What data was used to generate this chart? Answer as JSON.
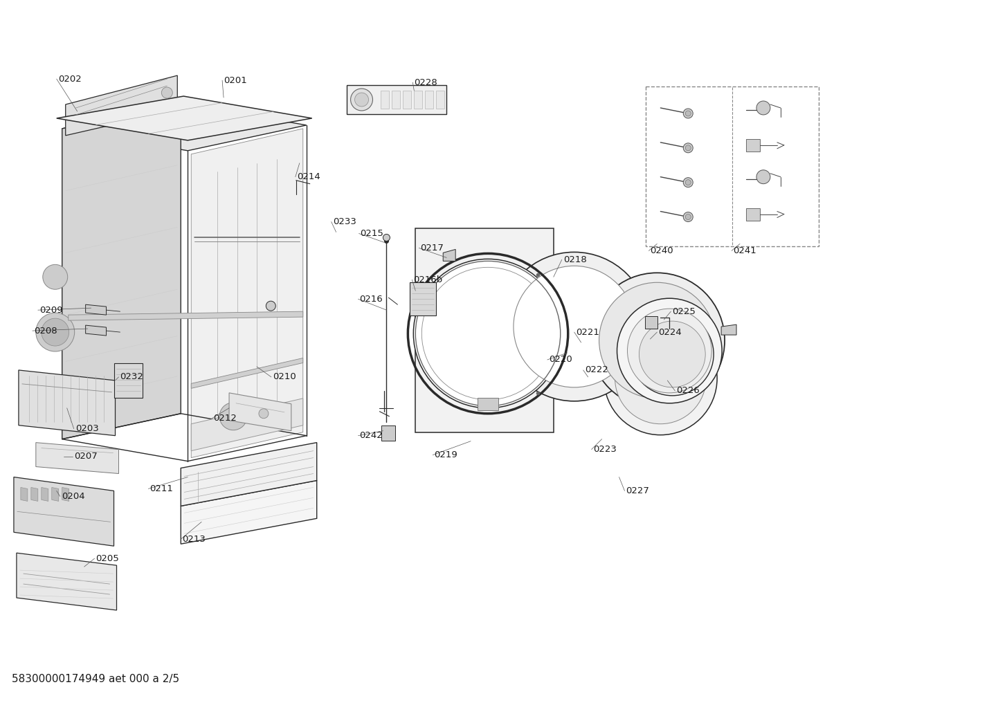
{
  "background_color": "#ffffff",
  "line_color": "#2a2a2a",
  "label_color": "#1a1a1a",
  "label_fontsize": 9.5,
  "footer_text": "58300000174949 aet 000 a 2/5",
  "footer_fontsize": 11
}
